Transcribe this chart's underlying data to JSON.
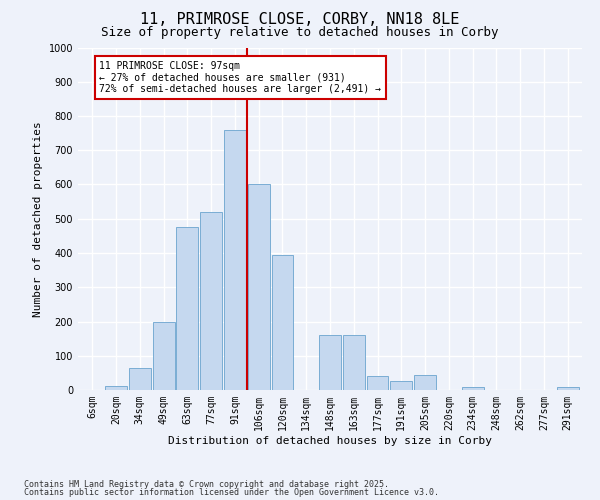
{
  "title1": "11, PRIMROSE CLOSE, CORBY, NN18 8LE",
  "title2": "Size of property relative to detached houses in Corby",
  "xlabel": "Distribution of detached houses by size in Corby",
  "ylabel": "Number of detached properties",
  "bins": [
    "6sqm",
    "20sqm",
    "34sqm",
    "49sqm",
    "63sqm",
    "77sqm",
    "91sqm",
    "106sqm",
    "120sqm",
    "134sqm",
    "148sqm",
    "163sqm",
    "177sqm",
    "191sqm",
    "205sqm",
    "220sqm",
    "234sqm",
    "248sqm",
    "262sqm",
    "277sqm",
    "291sqm"
  ],
  "bar_heights": [
    0,
    13,
    65,
    200,
    475,
    520,
    760,
    600,
    395,
    0,
    160,
    160,
    42,
    25,
    45,
    0,
    10,
    0,
    0,
    0,
    8
  ],
  "bar_color": "#c5d8ef",
  "bar_edge_color": "#7aadd4",
  "vline_color": "#cc0000",
  "vline_x_idx": 6.5,
  "annotation_text": "11 PRIMROSE CLOSE: 97sqm\n← 27% of detached houses are smaller (931)\n72% of semi-detached houses are larger (2,491) →",
  "annotation_box_color": "white",
  "annotation_box_edge": "#cc0000",
  "ylim": [
    0,
    1000
  ],
  "yticks": [
    0,
    100,
    200,
    300,
    400,
    500,
    600,
    700,
    800,
    900,
    1000
  ],
  "footer1": "Contains HM Land Registry data © Crown copyright and database right 2025.",
  "footer2": "Contains public sector information licensed under the Open Government Licence v3.0.",
  "bg_color": "#eef2fa",
  "grid_color": "white",
  "title1_fontsize": 11,
  "title2_fontsize": 9,
  "tick_fontsize": 7,
  "axis_label_fontsize": 8,
  "annotation_fontsize": 7,
  "footer_fontsize": 6
}
